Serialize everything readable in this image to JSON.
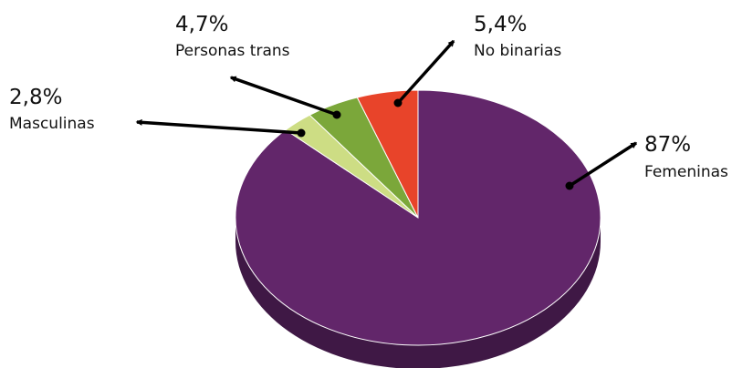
{
  "chart_data": {
    "type": "pie",
    "style": "3d",
    "title": "",
    "slices": [
      {
        "name": "Femeninas",
        "value": 87,
        "value_label": "87%",
        "color": "#62266a",
        "side_color": "#3f1845"
      },
      {
        "name": "Masculinas",
        "value": 2.8,
        "value_label": "2,8%",
        "color": "#cddd84",
        "side_color": "#9aa85f"
      },
      {
        "name": "Personas trans",
        "value": 4.7,
        "value_label": "4,7%",
        "color": "#7ba73a",
        "side_color": "#5b7d2a"
      },
      {
        "name": "No binarias",
        "value": 5.4,
        "value_label": "5,4%",
        "color": "#e8442a",
        "side_color": "#ae321f"
      }
    ],
    "legend": "none",
    "arrow_color": "#000000"
  }
}
